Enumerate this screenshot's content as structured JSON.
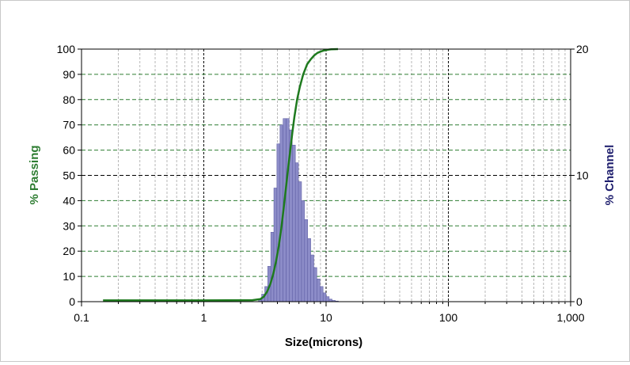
{
  "chart_data": {
    "type": "bar",
    "xlabel": "Size(microns)",
    "x_scale": "log",
    "xlim": [
      0.1,
      1000
    ],
    "x_ticks": [
      "0.1",
      "1",
      "10",
      "100",
      "1,000"
    ],
    "y_left": {
      "label": "% Passing",
      "ylim": [
        0,
        100
      ],
      "ticks": [
        "0",
        "10",
        "20",
        "30",
        "40",
        "50",
        "60",
        "70",
        "80",
        "90",
        "100"
      ],
      "color": "#2e7d32"
    },
    "y_right": {
      "label": "% Channel",
      "ylim": [
        0,
        20
      ],
      "ticks": [
        "0",
        "10",
        "20"
      ],
      "color": "#1f1f6e"
    },
    "grid": true,
    "series": [
      {
        "kind": "bar",
        "axis": "right",
        "color": "#8c8cc8",
        "edges": [
          2.8,
          2.97,
          3.15,
          3.33,
          3.53,
          3.74,
          3.96,
          4.2,
          4.45,
          4.71,
          4.99,
          5.29,
          5.61,
          5.94,
          6.3,
          6.67,
          7.07,
          7.49,
          7.94,
          8.41,
          8.92,
          9.45,
          10.0,
          10.6,
          11.2,
          11.9,
          12.6
        ],
        "values": [
          0.2,
          0.6,
          1.2,
          2.8,
          5.5,
          9.0,
          12.5,
          14.0,
          14.5,
          14.5,
          13.6,
          12.4,
          11.0,
          9.5,
          8.0,
          6.5,
          5.0,
          3.7,
          2.7,
          1.8,
          1.2,
          0.7,
          0.4,
          0.2,
          0.1,
          0.05
        ]
      },
      {
        "kind": "line",
        "axis": "left",
        "color": "#1e7a1e",
        "x": [
          0.15,
          1.0,
          2.5,
          2.9,
          3.1,
          3.3,
          3.5,
          3.7,
          3.9,
          4.1,
          4.3,
          4.5,
          4.7,
          4.9,
          5.1,
          5.3,
          5.5,
          5.8,
          6.1,
          6.5,
          7.0,
          7.5,
          8.0,
          8.5,
          9.0,
          9.5,
          10.0,
          10.5,
          11.0,
          12.5
        ],
        "y": [
          0.5,
          0.5,
          0.6,
          1.0,
          2.0,
          4.0,
          7.0,
          11.0,
          16.0,
          22.0,
          29.0,
          37.0,
          45.0,
          53.0,
          60.0,
          67.0,
          73.0,
          80.0,
          85.0,
          90.0,
          94.0,
          96.0,
          97.5,
          98.5,
          99.0,
          99.4,
          99.6,
          99.8,
          99.9,
          100.0
        ]
      }
    ]
  }
}
